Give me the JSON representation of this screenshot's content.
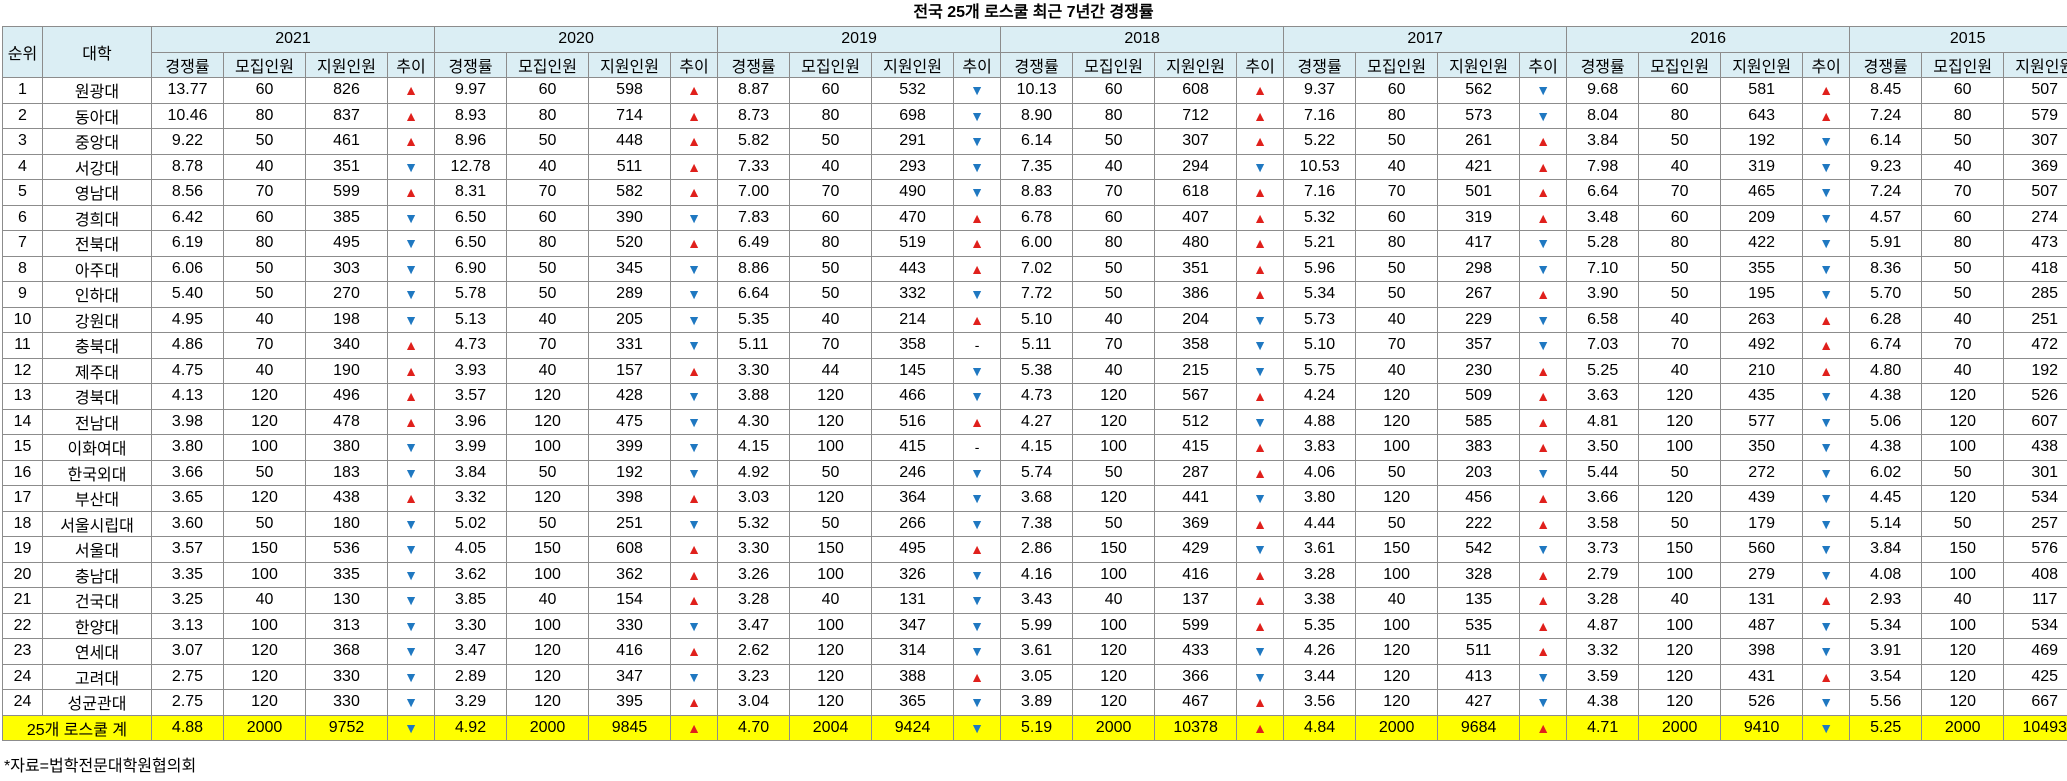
{
  "title": "전국 25개 로스쿨 최근 7년간 경쟁률",
  "table": {
    "header": {
      "rank": "순위",
      "school": "대학",
      "years": [
        "2021",
        "2020",
        "2019",
        "2018",
        "2017",
        "2016",
        "2015"
      ],
      "sub": [
        "경쟁률",
        "모집인원",
        "지원인원",
        "추이"
      ]
    },
    "rows": [
      [
        "1",
        "원광대",
        "13.77",
        "60",
        "826",
        "▲",
        "9.97",
        "60",
        "598",
        "▲",
        "8.87",
        "60",
        "532",
        "▼",
        "10.13",
        "60",
        "608",
        "▲",
        "9.37",
        "60",
        "562",
        "▼",
        "9.68",
        "60",
        "581",
        "▲",
        "8.45",
        "60",
        "507"
      ],
      [
        "2",
        "동아대",
        "10.46",
        "80",
        "837",
        "▲",
        "8.93",
        "80",
        "714",
        "▲",
        "8.73",
        "80",
        "698",
        "▼",
        "8.90",
        "80",
        "712",
        "▲",
        "7.16",
        "80",
        "573",
        "▼",
        "8.04",
        "80",
        "643",
        "▲",
        "7.24",
        "80",
        "579"
      ],
      [
        "3",
        "중앙대",
        "9.22",
        "50",
        "461",
        "▲",
        "8.96",
        "50",
        "448",
        "▲",
        "5.82",
        "50",
        "291",
        "▼",
        "6.14",
        "50",
        "307",
        "▲",
        "5.22",
        "50",
        "261",
        "▲",
        "3.84",
        "50",
        "192",
        "▼",
        "6.14",
        "50",
        "307"
      ],
      [
        "4",
        "서강대",
        "8.78",
        "40",
        "351",
        "▼",
        "12.78",
        "40",
        "511",
        "▲",
        "7.33",
        "40",
        "293",
        "▼",
        "7.35",
        "40",
        "294",
        "▼",
        "10.53",
        "40",
        "421",
        "▲",
        "7.98",
        "40",
        "319",
        "▼",
        "9.23",
        "40",
        "369"
      ],
      [
        "5",
        "영남대",
        "8.56",
        "70",
        "599",
        "▲",
        "8.31",
        "70",
        "582",
        "▲",
        "7.00",
        "70",
        "490",
        "▼",
        "8.83",
        "70",
        "618",
        "▲",
        "7.16",
        "70",
        "501",
        "▲",
        "6.64",
        "70",
        "465",
        "▼",
        "7.24",
        "70",
        "507"
      ],
      [
        "6",
        "경희대",
        "6.42",
        "60",
        "385",
        "▼",
        "6.50",
        "60",
        "390",
        "▼",
        "7.83",
        "60",
        "470",
        "▲",
        "6.78",
        "60",
        "407",
        "▲",
        "5.32",
        "60",
        "319",
        "▲",
        "3.48",
        "60",
        "209",
        "▼",
        "4.57",
        "60",
        "274"
      ],
      [
        "7",
        "전북대",
        "6.19",
        "80",
        "495",
        "▼",
        "6.50",
        "80",
        "520",
        "▲",
        "6.49",
        "80",
        "519",
        "▲",
        "6.00",
        "80",
        "480",
        "▲",
        "5.21",
        "80",
        "417",
        "▼",
        "5.28",
        "80",
        "422",
        "▼",
        "5.91",
        "80",
        "473"
      ],
      [
        "8",
        "아주대",
        "6.06",
        "50",
        "303",
        "▼",
        "6.90",
        "50",
        "345",
        "▼",
        "8.86",
        "50",
        "443",
        "▲",
        "7.02",
        "50",
        "351",
        "▲",
        "5.96",
        "50",
        "298",
        "▼",
        "7.10",
        "50",
        "355",
        "▼",
        "8.36",
        "50",
        "418"
      ],
      [
        "9",
        "인하대",
        "5.40",
        "50",
        "270",
        "▼",
        "5.78",
        "50",
        "289",
        "▼",
        "6.64",
        "50",
        "332",
        "▼",
        "7.72",
        "50",
        "386",
        "▲",
        "5.34",
        "50",
        "267",
        "▲",
        "3.90",
        "50",
        "195",
        "▼",
        "5.70",
        "50",
        "285"
      ],
      [
        "10",
        "강원대",
        "4.95",
        "40",
        "198",
        "▼",
        "5.13",
        "40",
        "205",
        "▼",
        "5.35",
        "40",
        "214",
        "▲",
        "5.10",
        "40",
        "204",
        "▼",
        "5.73",
        "40",
        "229",
        "▼",
        "6.58",
        "40",
        "263",
        "▲",
        "6.28",
        "40",
        "251"
      ],
      [
        "11",
        "충북대",
        "4.86",
        "70",
        "340",
        "▲",
        "4.73",
        "70",
        "331",
        "▼",
        "5.11",
        "70",
        "358",
        "-",
        "5.11",
        "70",
        "358",
        "▼",
        "5.10",
        "70",
        "357",
        "▼",
        "7.03",
        "70",
        "492",
        "▲",
        "6.74",
        "70",
        "472"
      ],
      [
        "12",
        "제주대",
        "4.75",
        "40",
        "190",
        "▲",
        "3.93",
        "40",
        "157",
        "▲",
        "3.30",
        "44",
        "145",
        "▼",
        "5.38",
        "40",
        "215",
        "▼",
        "5.75",
        "40",
        "230",
        "▲",
        "5.25",
        "40",
        "210",
        "▲",
        "4.80",
        "40",
        "192"
      ],
      [
        "13",
        "경북대",
        "4.13",
        "120",
        "496",
        "▲",
        "3.57",
        "120",
        "428",
        "▼",
        "3.88",
        "120",
        "466",
        "▼",
        "4.73",
        "120",
        "567",
        "▲",
        "4.24",
        "120",
        "509",
        "▲",
        "3.63",
        "120",
        "435",
        "▼",
        "4.38",
        "120",
        "526"
      ],
      [
        "14",
        "전남대",
        "3.98",
        "120",
        "478",
        "▲",
        "3.96",
        "120",
        "475",
        "▼",
        "4.30",
        "120",
        "516",
        "▲",
        "4.27",
        "120",
        "512",
        "▼",
        "4.88",
        "120",
        "585",
        "▲",
        "4.81",
        "120",
        "577",
        "▼",
        "5.06",
        "120",
        "607"
      ],
      [
        "15",
        "이화여대",
        "3.80",
        "100",
        "380",
        "▼",
        "3.99",
        "100",
        "399",
        "▼",
        "4.15",
        "100",
        "415",
        "-",
        "4.15",
        "100",
        "415",
        "▲",
        "3.83",
        "100",
        "383",
        "▲",
        "3.50",
        "100",
        "350",
        "▼",
        "4.38",
        "100",
        "438"
      ],
      [
        "16",
        "한국외대",
        "3.66",
        "50",
        "183",
        "▼",
        "3.84",
        "50",
        "192",
        "▼",
        "4.92",
        "50",
        "246",
        "▼",
        "5.74",
        "50",
        "287",
        "▲",
        "4.06",
        "50",
        "203",
        "▼",
        "5.44",
        "50",
        "272",
        "▼",
        "6.02",
        "50",
        "301"
      ],
      [
        "17",
        "부산대",
        "3.65",
        "120",
        "438",
        "▲",
        "3.32",
        "120",
        "398",
        "▲",
        "3.03",
        "120",
        "364",
        "▼",
        "3.68",
        "120",
        "441",
        "▼",
        "3.80",
        "120",
        "456",
        "▲",
        "3.66",
        "120",
        "439",
        "▼",
        "4.45",
        "120",
        "534"
      ],
      [
        "18",
        "서울시립대",
        "3.60",
        "50",
        "180",
        "▼",
        "5.02",
        "50",
        "251",
        "▼",
        "5.32",
        "50",
        "266",
        "▼",
        "7.38",
        "50",
        "369",
        "▲",
        "4.44",
        "50",
        "222",
        "▲",
        "3.58",
        "50",
        "179",
        "▼",
        "5.14",
        "50",
        "257"
      ],
      [
        "19",
        "서울대",
        "3.57",
        "150",
        "536",
        "▼",
        "4.05",
        "150",
        "608",
        "▲",
        "3.30",
        "150",
        "495",
        "▲",
        "2.86",
        "150",
        "429",
        "▼",
        "3.61",
        "150",
        "542",
        "▼",
        "3.73",
        "150",
        "560",
        "▼",
        "3.84",
        "150",
        "576"
      ],
      [
        "20",
        "충남대",
        "3.35",
        "100",
        "335",
        "▼",
        "3.62",
        "100",
        "362",
        "▲",
        "3.26",
        "100",
        "326",
        "▼",
        "4.16",
        "100",
        "416",
        "▲",
        "3.28",
        "100",
        "328",
        "▲",
        "2.79",
        "100",
        "279",
        "▼",
        "4.08",
        "100",
        "408"
      ],
      [
        "21",
        "건국대",
        "3.25",
        "40",
        "130",
        "▼",
        "3.85",
        "40",
        "154",
        "▲",
        "3.28",
        "40",
        "131",
        "▼",
        "3.43",
        "40",
        "137",
        "▲",
        "3.38",
        "40",
        "135",
        "▲",
        "3.28",
        "40",
        "131",
        "▲",
        "2.93",
        "40",
        "117"
      ],
      [
        "22",
        "한양대",
        "3.13",
        "100",
        "313",
        "▼",
        "3.30",
        "100",
        "330",
        "▼",
        "3.47",
        "100",
        "347",
        "▼",
        "5.99",
        "100",
        "599",
        "▲",
        "5.35",
        "100",
        "535",
        "▲",
        "4.87",
        "100",
        "487",
        "▼",
        "5.34",
        "100",
        "534"
      ],
      [
        "23",
        "연세대",
        "3.07",
        "120",
        "368",
        "▼",
        "3.47",
        "120",
        "416",
        "▲",
        "2.62",
        "120",
        "314",
        "▼",
        "3.61",
        "120",
        "433",
        "▼",
        "4.26",
        "120",
        "511",
        "▲",
        "3.32",
        "120",
        "398",
        "▼",
        "3.91",
        "120",
        "469"
      ],
      [
        "24",
        "고려대",
        "2.75",
        "120",
        "330",
        "▼",
        "2.89",
        "120",
        "347",
        "▼",
        "3.23",
        "120",
        "388",
        "▲",
        "3.05",
        "120",
        "366",
        "▼",
        "3.44",
        "120",
        "413",
        "▼",
        "3.59",
        "120",
        "431",
        "▲",
        "3.54",
        "120",
        "425"
      ],
      [
        "24",
        "성균관대",
        "2.75",
        "120",
        "330",
        "▼",
        "3.29",
        "120",
        "395",
        "▲",
        "3.04",
        "120",
        "365",
        "▼",
        "3.89",
        "120",
        "467",
        "▲",
        "3.56",
        "120",
        "427",
        "▼",
        "4.38",
        "120",
        "526",
        "▼",
        "5.56",
        "120",
        "667"
      ]
    ],
    "total": [
      "25개 로스쿨 계",
      "4.88",
      "2000",
      "9752",
      "▼",
      "4.92",
      "2000",
      "9845",
      "▲",
      "4.70",
      "2004",
      "9424",
      "▼",
      "5.19",
      "2000",
      "10378",
      "▲",
      "4.84",
      "2000",
      "9684",
      "▲",
      "4.71",
      "2000",
      "9410",
      "▼",
      "5.25",
      "2000",
      "10493"
    ]
  },
  "source": "*자료=법학전문대학원협의회",
  "trend_styles": [
    {
      "symbol": "▲",
      "color": "#e0201c"
    },
    {
      "symbol": "▼",
      "color": "#1f78c1"
    },
    {
      "symbol": "-",
      "color": "#000000"
    }
  ]
}
